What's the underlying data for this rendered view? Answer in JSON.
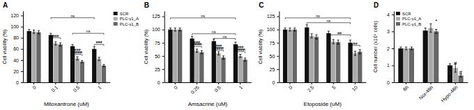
{
  "chart_data": [
    {
      "type": "bar",
      "title": "A",
      "x_label": "Mitoxantrone (uM)",
      "y_label": "Cell viability (%)",
      "categories": [
        "0",
        "0.1",
        "0.5",
        "1"
      ],
      "series": [
        {
          "name": "SCR",
          "color": "#111111",
          "values": [
            92,
            85,
            65,
            60
          ],
          "errors": [
            3,
            3,
            3,
            4
          ]
        },
        {
          "name": "PLC-γ1_A",
          "color": "#aaaaaa",
          "values": [
            91,
            70,
            43,
            42
          ],
          "errors": [
            3,
            3,
            3,
            3
          ]
        },
        {
          "name": "PLC-γ1_B",
          "color": "#666666",
          "values": [
            90,
            68,
            37,
            30
          ],
          "errors": [
            3,
            3,
            2,
            2
          ]
        }
      ],
      "ylim": [
        0,
        128
      ],
      "yticks": [
        0,
        20,
        40,
        60,
        80,
        100,
        120
      ],
      "legend": "upper right",
      "annotations": [
        {
          "text": "ns",
          "x1": 0.78,
          "x2": 2.78,
          "y": 116
        },
        {
          "text": "###",
          "x1": 0.78,
          "x2": 1.22,
          "y": 80
        },
        {
          "text": "ns",
          "x1": 1.78,
          "x2": 3.22,
          "y": 88
        },
        {
          "text": "###",
          "x1": 1.78,
          "x2": 2.22,
          "y": 55
        },
        {
          "text": "####",
          "x1": 1.78,
          "x2": 2.22,
          "y": 50
        },
        {
          "text": "###",
          "x1": 2.78,
          "x2": 3.22,
          "y": 68
        }
      ]
    },
    {
      "type": "bar",
      "title": "B",
      "x_label": "Amsacrine (uM)",
      "y_label": "Cell viability (%)",
      "categories": [
        "0",
        "0.25",
        "0.5",
        "1"
      ],
      "series": [
        {
          "color": "#111111",
          "values": [
            100,
            83,
            78,
            72
          ],
          "errors": [
            3,
            4,
            4,
            4
          ]
        },
        {
          "color": "#aaaaaa",
          "values": [
            100,
            60,
            55,
            50
          ],
          "errors": [
            3,
            3,
            3,
            3
          ]
        },
        {
          "color": "#666666",
          "values": [
            100,
            57,
            47,
            43
          ],
          "errors": [
            3,
            3,
            3,
            3
          ]
        }
      ],
      "ylim": [
        0,
        135
      ],
      "yticks": [
        0,
        25,
        50,
        75,
        100,
        125
      ],
      "annotations": [
        {
          "text": "ns",
          "x1": -0.22,
          "x2": 2.78,
          "y": 122
        },
        {
          "text": "###",
          "x1": 0.78,
          "x2": 1.22,
          "y": 73
        },
        {
          "text": "####",
          "x1": 0.78,
          "x2": 1.22,
          "y": 68
        },
        {
          "text": "ns",
          "x1": 0.78,
          "x2": 2.78,
          "y": 92
        },
        {
          "text": "###",
          "x1": 1.78,
          "x2": 2.22,
          "y": 66
        },
        {
          "text": "####",
          "x1": 1.78,
          "x2": 2.22,
          "y": 61
        },
        {
          "text": "ns",
          "x1": 1.78,
          "x2": 2.78,
          "y": 83
        },
        {
          "text": "###",
          "x1": 2.78,
          "x2": 3.22,
          "y": 63
        },
        {
          "text": "####",
          "x1": 2.78,
          "x2": 3.22,
          "y": 58
        }
      ]
    },
    {
      "type": "bar",
      "title": "C",
      "x_label": "Etoposide (uM)",
      "y_label": "Cell viability (%)",
      "categories": [
        "0",
        "2.5",
        "5",
        "10"
      ],
      "series": [
        {
          "color": "#111111",
          "values": [
            100,
            104,
            93,
            75
          ],
          "errors": [
            3,
            5,
            4,
            5
          ]
        },
        {
          "color": "#aaaaaa",
          "values": [
            100,
            88,
            77,
            55
          ],
          "errors": [
            3,
            4,
            4,
            4
          ]
        },
        {
          "color": "#666666",
          "values": [
            100,
            86,
            76,
            58
          ],
          "errors": [
            3,
            4,
            4,
            4
          ]
        }
      ],
      "ylim": [
        0,
        135
      ],
      "yticks": [
        0,
        25,
        50,
        75,
        100,
        125
      ],
      "annotations": [
        {
          "text": "ns",
          "x1": -0.22,
          "x2": 2.78,
          "y": 122
        },
        {
          "text": "ns",
          "x1": 0.78,
          "x2": 2.78,
          "y": 113
        },
        {
          "text": "##",
          "x1": 1.78,
          "x2": 2.78,
          "y": 90
        },
        {
          "text": "##",
          "x1": 2.78,
          "x2": 3.22,
          "y": 70
        }
      ]
    },
    {
      "type": "bar",
      "title": "D",
      "y_label": "Cell number (x10⁶ cells)",
      "categories": [
        "6h",
        "Nor-46h",
        "Hypo-46h"
      ],
      "series": [
        {
          "name": "SCR",
          "color": "#111111",
          "values": [
            2.0,
            3.05,
            1.0
          ],
          "errors": [
            0.08,
            0.15,
            0.1
          ]
        },
        {
          "name": "PLC-γ1_A",
          "color": "#aaaaaa",
          "values": [
            2.0,
            3.2,
            0.85
          ],
          "errors": [
            0.08,
            0.25,
            0.25
          ]
        },
        {
          "name": "PLC-γ1_B",
          "color": "#666666",
          "values": [
            2.0,
            3.0,
            0.4
          ],
          "errors": [
            0.08,
            0.12,
            0.08
          ]
        }
      ],
      "ylim": [
        0,
        4.2
      ],
      "yticks": [
        0,
        1,
        2,
        3,
        4
      ],
      "legend": "upper left",
      "annotations": [
        {
          "text": "*",
          "x": 1.22,
          "y": 3.55
        },
        {
          "text": "#",
          "x": 2.0,
          "y": 1.05
        },
        {
          "text": "#",
          "x": 2.22,
          "y": 0.52
        }
      ]
    }
  ]
}
